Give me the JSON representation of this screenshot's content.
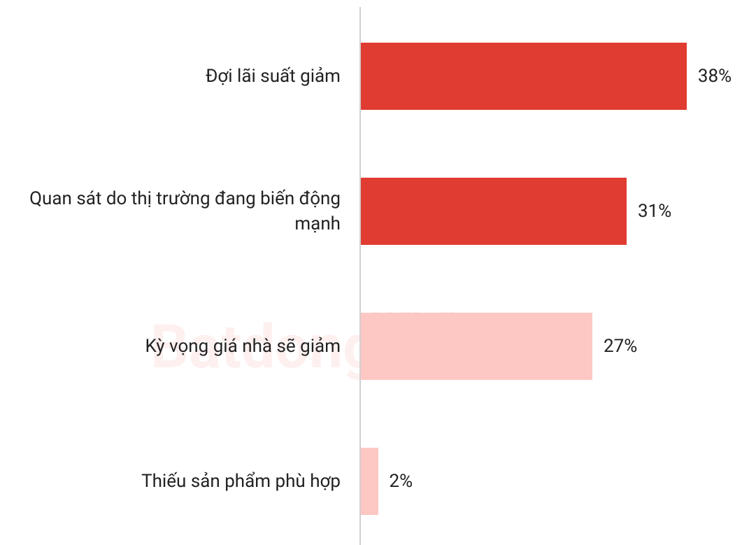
{
  "chart_data": {
    "type": "bar",
    "orientation": "horizontal",
    "categories": [
      "Đợi lãi suất giảm",
      "Quan sát do thị trường đang biến động mạnh",
      "Kỳ vọng giá nhà sẽ giảm",
      "Thiếu sản phẩm phù hợp"
    ],
    "values": [
      38,
      31,
      27,
      2
    ],
    "value_labels": [
      "38%",
      "31%",
      "27%",
      "2%"
    ],
    "colors": [
      "#e03c31",
      "#e03c31",
      "#fdc7c3",
      "#fdc7c3"
    ],
    "watermark": [
      "Batdongsan",
      ".com.vn"
    ]
  }
}
